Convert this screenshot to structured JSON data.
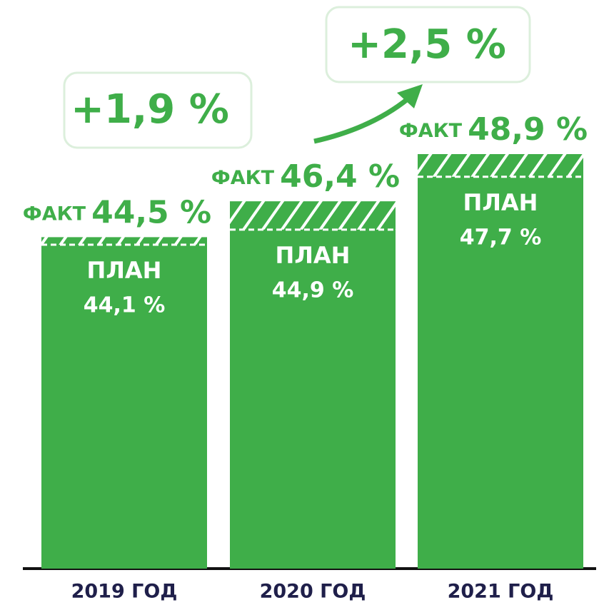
{
  "chart_data": {
    "type": "bar",
    "categories": [
      "2019 ГОД",
      "2020 ГОД",
      "2021 ГОД"
    ],
    "series": [
      {
        "name": "ПЛАН",
        "color": "#3fae49",
        "values": [
          44.1,
          44.9,
          47.7
        ],
        "value_labels": [
          "44,1 %",
          "44,9 %",
          "47,7 %"
        ]
      },
      {
        "name": "ФАКТ",
        "color": "#3fae49",
        "values": [
          44.5,
          46.4,
          48.9
        ],
        "value_labels": [
          "44,5 %",
          "46,4 %",
          "48,9 %"
        ]
      }
    ],
    "annotations": [
      "+1,9 %",
      "+2,5 %"
    ]
  }
}
